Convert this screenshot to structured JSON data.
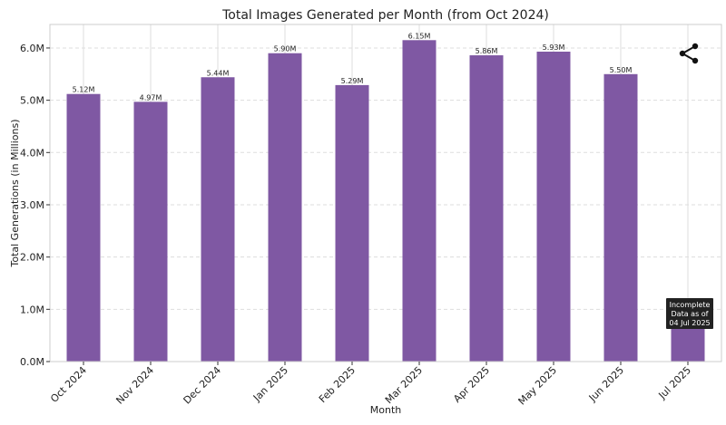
{
  "chart_data": {
    "type": "bar",
    "title": "Total Images Generated per Month (from Oct 2024)",
    "xlabel": "Month",
    "ylabel": "Total Generations (in Millions)",
    "categories": [
      "Oct 2024",
      "Nov 2024",
      "Dec 2024",
      "Jan 2025",
      "Feb 2025",
      "Mar 2025",
      "Apr 2025",
      "May 2025",
      "Jun 2025",
      "Jul 2025"
    ],
    "values": [
      5.12,
      4.97,
      5.44,
      5.9,
      5.29,
      6.15,
      5.86,
      5.93,
      5.5,
      0.7
    ],
    "data_labels": [
      "5.12M",
      "4.97M",
      "5.44M",
      "5.90M",
      "5.29M",
      "6.15M",
      "5.86M",
      "5.93M",
      "5.50M",
      ""
    ],
    "ylim": [
      0,
      6.45
    ],
    "yticks": [
      0,
      1,
      2,
      3,
      4,
      5,
      6
    ],
    "ytick_labels": [
      "0.0M",
      "1.0M",
      "2.0M",
      "3.0M",
      "4.0M",
      "5.0M",
      "6.0M"
    ],
    "grid": true,
    "bar_color": "#7f58a3",
    "annotation": {
      "category": "Jul 2025",
      "lines": [
        "Incomplete",
        "Data as of",
        "04 Jul 2025"
      ],
      "bg_color": "#222222"
    },
    "share_icon": "share-icon"
  }
}
